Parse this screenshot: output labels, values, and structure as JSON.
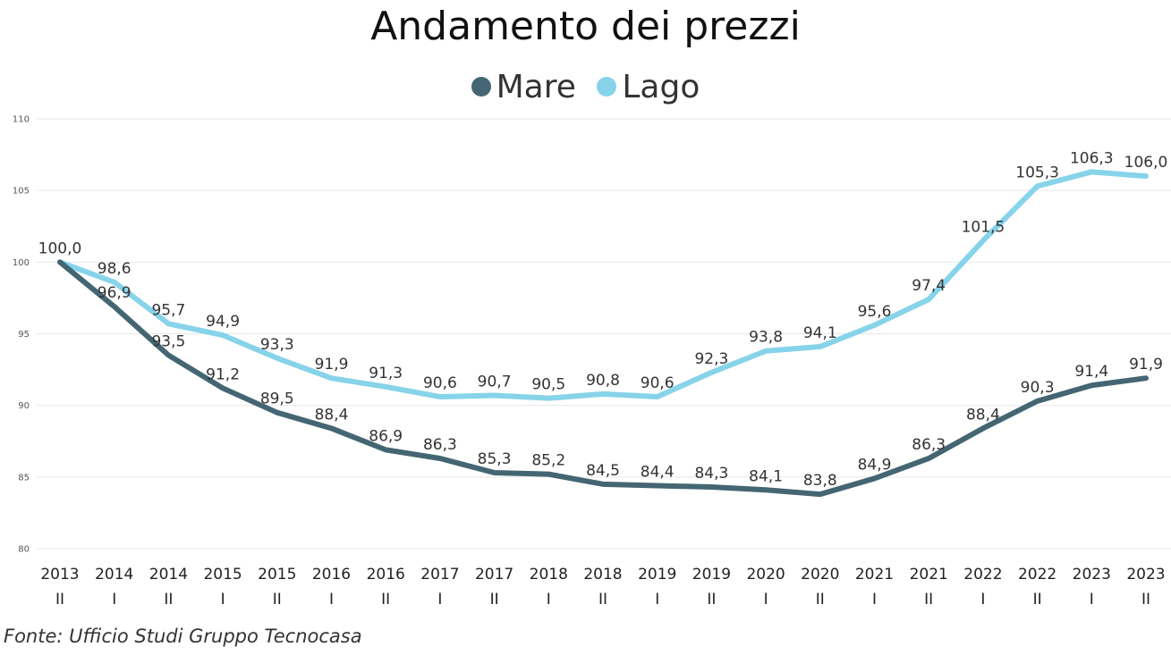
{
  "chart_data": {
    "type": "line",
    "title": "Andamento dei prezzi",
    "xlabel": "",
    "ylabel": "",
    "ylim": [
      80,
      110
    ],
    "yticks": [
      80,
      85,
      90,
      95,
      100,
      105,
      110
    ],
    "grid": true,
    "legend_position": "top-center",
    "categories": [
      {
        "year": "2013",
        "half": "II"
      },
      {
        "year": "2014",
        "half": "I"
      },
      {
        "year": "2014",
        "half": "II"
      },
      {
        "year": "2015",
        "half": "I"
      },
      {
        "year": "2015",
        "half": "II"
      },
      {
        "year": "2016",
        "half": "I"
      },
      {
        "year": "2016",
        "half": "II"
      },
      {
        "year": "2017",
        "half": "I"
      },
      {
        "year": "2017",
        "half": "II"
      },
      {
        "year": "2018",
        "half": "I"
      },
      {
        "year": "2018",
        "half": "II"
      },
      {
        "year": "2019",
        "half": "I"
      },
      {
        "year": "2019",
        "half": "II"
      },
      {
        "year": "2020",
        "half": "I"
      },
      {
        "year": "2020",
        "half": "II"
      },
      {
        "year": "2021",
        "half": "I"
      },
      {
        "year": "2021",
        "half": "II"
      },
      {
        "year": "2022",
        "half": "I"
      },
      {
        "year": "2022",
        "half": "II"
      },
      {
        "year": "2023",
        "half": "I"
      },
      {
        "year": "2023",
        "half": "II"
      }
    ],
    "series": [
      {
        "name": "Mare",
        "color": "#446672",
        "values": [
          100.0,
          96.9,
          93.5,
          91.2,
          89.5,
          88.4,
          86.9,
          86.3,
          85.3,
          85.2,
          84.5,
          84.4,
          84.3,
          84.1,
          83.8,
          84.9,
          86.3,
          88.4,
          90.3,
          91.4,
          91.9
        ],
        "labels": [
          "100,0",
          "96,9",
          "93,5",
          "91,2",
          "89,5",
          "88,4",
          "86,9",
          "86,3",
          "85,3",
          "85,2",
          "84,5",
          "84,4",
          "84,3",
          "84,1",
          "83,8",
          "84,9",
          "86,3",
          "88,4",
          "90,3",
          "91,4",
          "91,9"
        ]
      },
      {
        "name": "Lago",
        "color": "#86d3ea",
        "values": [
          100.0,
          98.6,
          95.7,
          94.9,
          93.3,
          91.9,
          91.3,
          90.6,
          90.7,
          90.5,
          90.8,
          90.6,
          92.3,
          93.8,
          94.1,
          95.6,
          97.4,
          101.5,
          105.3,
          106.3,
          106.0
        ],
        "labels": [
          "100,0",
          "98,6",
          "95,7",
          "94,9",
          "93,3",
          "91,9",
          "91,3",
          "90,6",
          "90,7",
          "90,5",
          "90,8",
          "90,6",
          "92,3",
          "93,8",
          "94,1",
          "95,6",
          "97,4",
          "101,5",
          "105,3",
          "106,3",
          "106,0"
        ]
      }
    ],
    "source": "Fonte: Ufficio Studi Gruppo Tecnocasa"
  }
}
